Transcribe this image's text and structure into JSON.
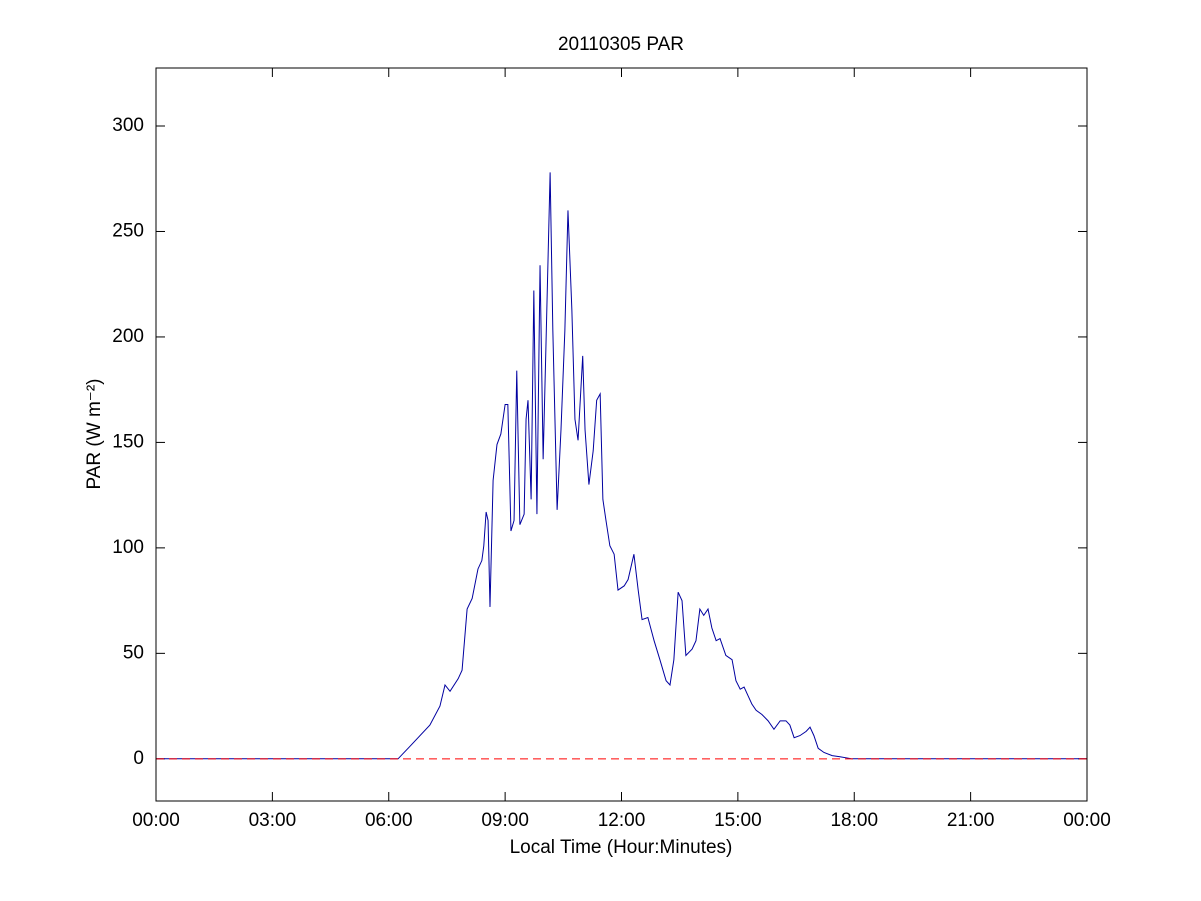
{
  "chart_data": {
    "type": "line",
    "title": "20110305 PAR",
    "xlabel": "Local Time (Hour:Minutes)",
    "ylabel": "PAR (W m⁻²)",
    "x": [
      0,
      6.24,
      6.55,
      7.06,
      7.32,
      7.45,
      7.58,
      7.79,
      7.89,
      8.02,
      8.15,
      8.3,
      8.4,
      8.45,
      8.51,
      8.56,
      8.61,
      8.69,
      8.79,
      8.89,
      9.0,
      9.07,
      9.15,
      9.23,
      9.3,
      9.38,
      9.49,
      9.54,
      9.59,
      9.67,
      9.74,
      9.82,
      9.9,
      9.98,
      10.05,
      10.16,
      10.23,
      10.34,
      10.44,
      10.54,
      10.62,
      10.72,
      10.8,
      10.88,
      11.0,
      11.06,
      11.16,
      11.27,
      11.36,
      11.45,
      11.52,
      11.6,
      11.7,
      11.81,
      11.91,
      12.07,
      12.17,
      12.32,
      12.43,
      12.53,
      12.68,
      12.84,
      12.99,
      13.15,
      13.25,
      13.35,
      13.46,
      13.56,
      13.66,
      13.82,
      13.92,
      14.02,
      14.12,
      14.23,
      14.33,
      14.44,
      14.54,
      14.69,
      14.85,
      14.95,
      15.06,
      15.16,
      15.26,
      15.36,
      15.47,
      15.62,
      15.78,
      15.93,
      16.09,
      16.24,
      16.34,
      16.45,
      16.6,
      16.76,
      16.86,
      16.96,
      17.07,
      17.22,
      17.43,
      17.63,
      17.94,
      24
    ],
    "series": [
      {
        "name": "PAR",
        "color": "#0000a0",
        "values": [
          0,
          0,
          6,
          16,
          25,
          35,
          32,
          38,
          42,
          71,
          76,
          90,
          94,
          101,
          117,
          113,
          72,
          132,
          149,
          154,
          168,
          168,
          108,
          113,
          184,
          111,
          116,
          161,
          170,
          123,
          222,
          116,
          234,
          142,
          194,
          278,
          203,
          118,
          156,
          203,
          260,
          213,
          161,
          151,
          191,
          156,
          130,
          146,
          170,
          173,
          123,
          113,
          101,
          97,
          80,
          82,
          85,
          97,
          80,
          66,
          67,
          56,
          47,
          37,
          35,
          47,
          79,
          75,
          49,
          52,
          56,
          71,
          68,
          71,
          62,
          56,
          57,
          49,
          47,
          37,
          33,
          34,
          30,
          26,
          23,
          21,
          18,
          14,
          18,
          18,
          16,
          10,
          11,
          13,
          15,
          11,
          5,
          3,
          1.5,
          1,
          0,
          0
        ]
      }
    ],
    "reference_line": {
      "value": 0,
      "color": "#ff0000",
      "dashed": true
    },
    "xlim": [
      0,
      24
    ],
    "ylim": [
      -20,
      327.5
    ],
    "xticks": [
      {
        "value": 0,
        "label": "00:00"
      },
      {
        "value": 3,
        "label": "03:00"
      },
      {
        "value": 6,
        "label": "06:00"
      },
      {
        "value": 9,
        "label": "09:00"
      },
      {
        "value": 12,
        "label": "12:00"
      },
      {
        "value": 15,
        "label": "15:00"
      },
      {
        "value": 18,
        "label": "18:00"
      },
      {
        "value": 21,
        "label": "21:00"
      },
      {
        "value": 24,
        "label": "00:00"
      }
    ],
    "yticks": [
      0,
      50,
      100,
      150,
      200,
      250,
      300
    ],
    "grid": false
  }
}
